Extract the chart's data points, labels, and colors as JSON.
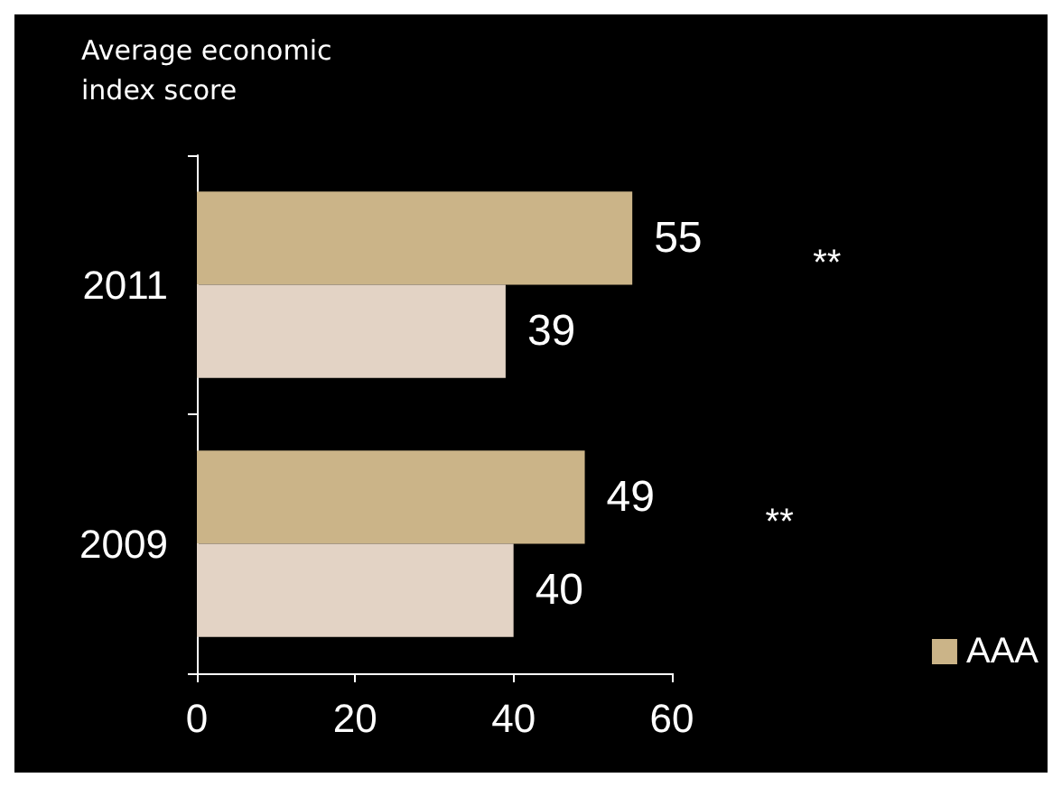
{
  "chart_data": {
    "type": "bar",
    "orientation": "horizontal",
    "title": "Average economic\nindex score",
    "categories": [
      "2011",
      "2009"
    ],
    "series": [
      {
        "name": "AAA",
        "color": "#cbb488",
        "values": [
          55,
          49
        ]
      },
      {
        "color": "#e3d3c5",
        "values": [
          39,
          40
        ]
      }
    ],
    "xlim": [
      0,
      60
    ],
    "xticks": [
      0,
      20,
      40,
      60
    ],
    "data_labels": true,
    "grid": false,
    "legend": "bottom right",
    "annotations": [
      "**",
      "**"
    ]
  }
}
